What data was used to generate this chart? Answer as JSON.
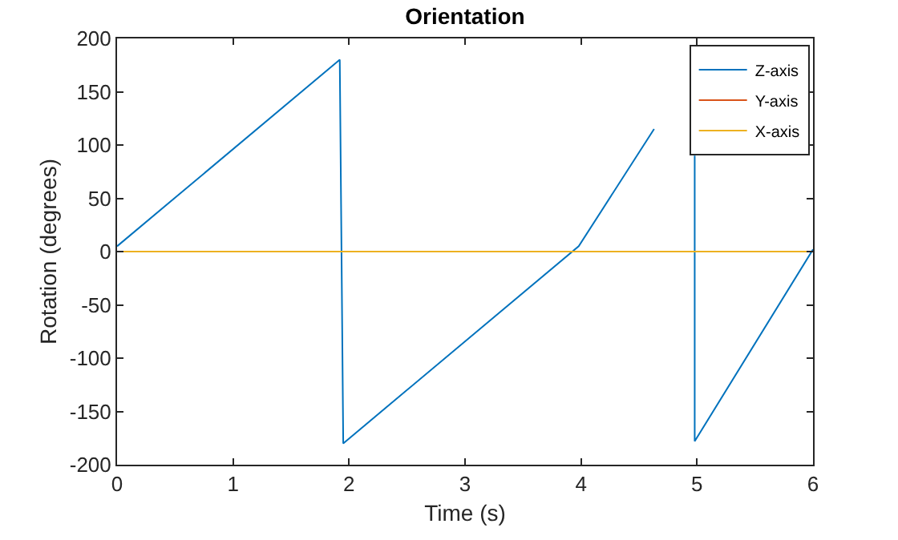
{
  "chart_data": {
    "type": "line",
    "title": "Orientation",
    "xlabel": "Time (s)",
    "ylabel": "Rotation (degrees)",
    "x": [
      0,
      1.92,
      1.95,
      3.98,
      4.63,
      4.7,
      4.98,
      4.98,
      6
    ],
    "series": [
      {
        "name": "Z-axis",
        "color": "#0072bd",
        "values": [
          5,
          180,
          -180,
          5,
          115,
          null,
          90,
          -178,
          2
        ]
      },
      {
        "name": "Y-axis",
        "color": "#d95319",
        "values": [
          null,
          null,
          null,
          null,
          null,
          null,
          null,
          null,
          null
        ]
      },
      {
        "name": "X-axis",
        "color": "#edb120",
        "x": [
          0,
          6
        ],
        "values": [
          0,
          0
        ]
      }
    ],
    "xlim": [
      0,
      6
    ],
    "xticks": [
      0,
      1,
      2,
      3,
      4,
      5,
      6
    ],
    "ylim": [
      -200,
      200
    ],
    "yticks": [
      -200,
      -150,
      -100,
      -50,
      0,
      50,
      100,
      150,
      200
    ],
    "legend": "top right",
    "line_style": "solid"
  }
}
